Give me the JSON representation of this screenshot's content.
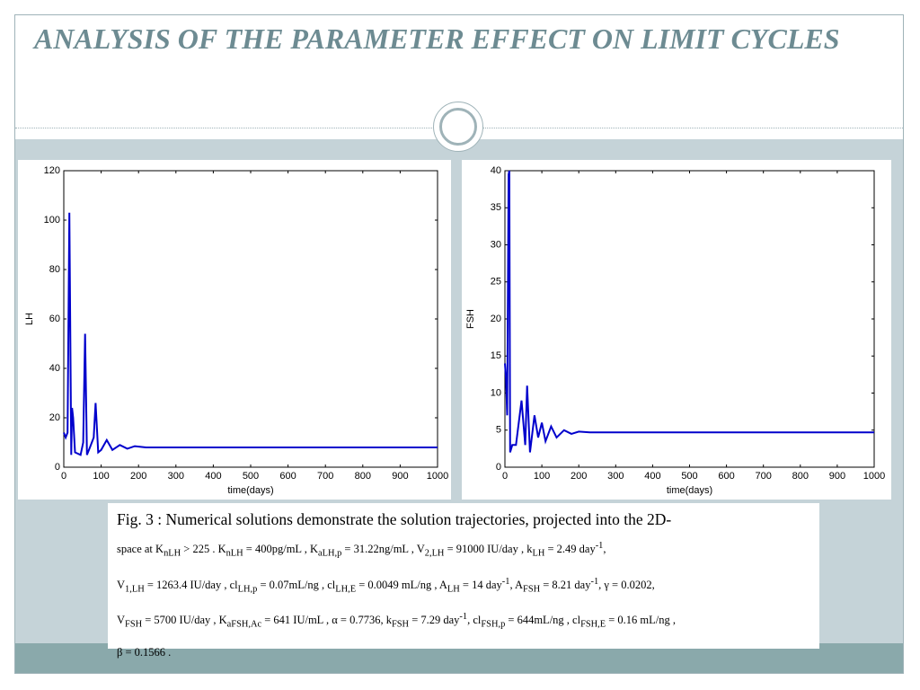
{
  "slide": {
    "title": "ANALYSIS OF  THE PARAMETER EFFECT ON LIMIT CYCLES"
  },
  "chart_data": [
    {
      "type": "line",
      "xlabel": "time(days)",
      "ylabel": "LH",
      "color": "#0000cc",
      "x": [
        0,
        5,
        10,
        15,
        20,
        22,
        25,
        30,
        45,
        52,
        57,
        62,
        70,
        80,
        85,
        92,
        100,
        115,
        130,
        150,
        170,
        190,
        220,
        1000
      ],
      "values": [
        14,
        12,
        14,
        103,
        5,
        24,
        20,
        6,
        5,
        10,
        54,
        5,
        8,
        12,
        26,
        6,
        7,
        11,
        7,
        9,
        7.5,
        8.5,
        8,
        8
      ],
      "xlim": [
        0,
        1000
      ],
      "xticks": [
        0,
        100,
        200,
        300,
        400,
        500,
        600,
        700,
        800,
        900,
        1000
      ],
      "ylim": [
        0,
        120
      ],
      "yticks": [
        0,
        20,
        40,
        60,
        80,
        100,
        120
      ]
    },
    {
      "type": "line",
      "xlabel": "time(days)",
      "ylabel": "FSH",
      "color": "#0000cc",
      "x": [
        0,
        3,
        6,
        10,
        12,
        14,
        20,
        30,
        45,
        55,
        60,
        68,
        80,
        90,
        100,
        110,
        125,
        140,
        160,
        180,
        200,
        230,
        1000
      ],
      "values": [
        14,
        12,
        7,
        39.5,
        40,
        2,
        3,
        3,
        9,
        3,
        11,
        2,
        7,
        4,
        6,
        3.5,
        5.5,
        4,
        5,
        4.5,
        4.8,
        4.7,
        4.7
      ],
      "xlim": [
        0,
        1000
      ],
      "xticks": [
        0,
        100,
        200,
        300,
        400,
        500,
        600,
        700,
        800,
        900,
        1000
      ],
      "ylim": [
        0,
        40
      ],
      "yticks": [
        0,
        5,
        10,
        15,
        20,
        25,
        30,
        35,
        40
      ]
    }
  ],
  "caption": {
    "lines": [
      [
        {
          "text": "Fig. 3  : Numerical solutions demonstrate the solution trajectories, projected  into the 2D-"
        }
      ],
      [
        {
          "text": "space   at    K"
        },
        {
          "text": "nLH",
          "pos": "sub"
        },
        {
          "text": " > 225    .  K"
        },
        {
          "text": "nLH",
          "pos": "sub"
        },
        {
          "text": " = 400pg/mL , K"
        },
        {
          "text": "aLH,p",
          "pos": "sub"
        },
        {
          "text": " = 31.22ng/mL , V"
        },
        {
          "text": "2,LH",
          "pos": "sub"
        },
        {
          "text": " = 91000 IU/day , k"
        },
        {
          "text": "LH",
          "pos": "sub"
        },
        {
          "text": " = 2.49 day"
        },
        {
          "text": "-1",
          "pos": "sup"
        },
        {
          "text": ","
        }
      ],
      [
        {
          "text": "V"
        },
        {
          "text": "1,LH",
          "pos": "sub"
        },
        {
          "text": " = 1263.4 IU/day , cl"
        },
        {
          "text": "LH,p",
          "pos": "sub"
        },
        {
          "text": " = 0.07mL/ng , cl"
        },
        {
          "text": "LH,E",
          "pos": "sub"
        },
        {
          "text": " = 0.0049 mL/ng , A"
        },
        {
          "text": "LH",
          "pos": "sub"
        },
        {
          "text": " = 14 day"
        },
        {
          "text": "-1",
          "pos": "sup"
        },
        {
          "text": ", A"
        },
        {
          "text": "FSH",
          "pos": "sub"
        },
        {
          "text": " = 8.21 day"
        },
        {
          "text": "-1",
          "pos": "sup"
        },
        {
          "text": ", γ = 0.0202,"
        }
      ],
      [
        {
          "text": "V"
        },
        {
          "text": "FSH",
          "pos": "sub"
        },
        {
          "text": " = 5700 IU/day , K"
        },
        {
          "text": "aFSH,Ac",
          "pos": "sub"
        },
        {
          "text": " = 641 IU/mL , α = 0.7736, k"
        },
        {
          "text": "FSH",
          "pos": "sub"
        },
        {
          "text": " = 7.29 day"
        },
        {
          "text": "-1",
          "pos": "sup"
        },
        {
          "text": ", cl"
        },
        {
          "text": "FSH,p",
          "pos": "sub"
        },
        {
          "text": " = 644mL/ng , cl"
        },
        {
          "text": "FSH,E",
          "pos": "sub"
        },
        {
          "text": " = 0.16 mL/ng ,"
        }
      ],
      [
        {
          "text": "β = 0.1566 ."
        }
      ]
    ]
  }
}
